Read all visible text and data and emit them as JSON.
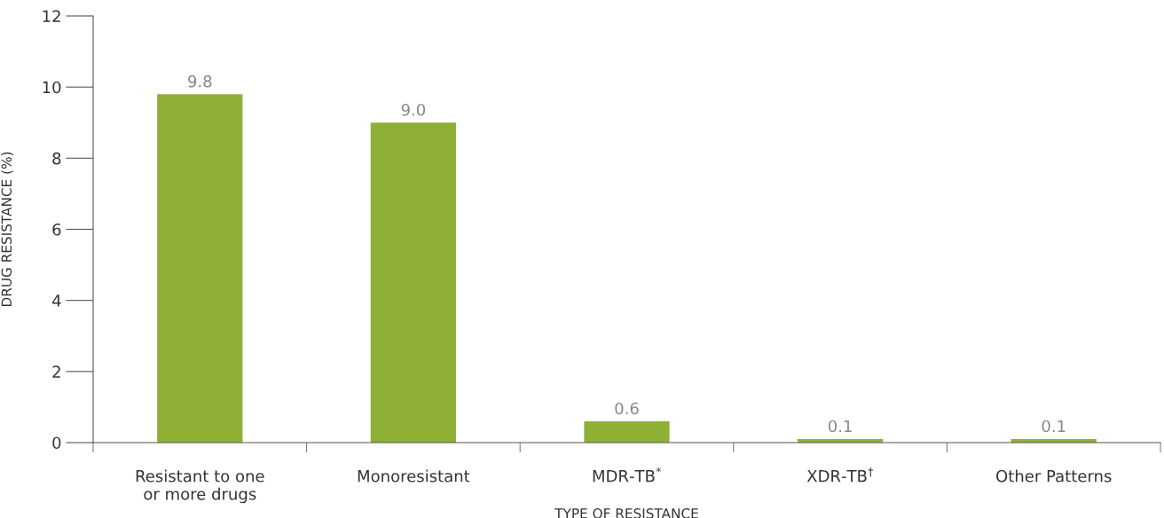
{
  "chart_data": {
    "type": "bar",
    "xlabel": "TYPE OF RESISTANCE",
    "ylabel": "DRUG RESISTANCE (%)",
    "categories": [
      "Resistant to one\nor more drugs",
      "Monoresistant",
      "MDR-TB$^{*}$",
      "XDR-TB$^{†}$",
      "Other Patterns"
    ],
    "values": [
      9.8,
      9.0,
      0.6,
      0.1,
      0.1
    ],
    "value_labels": [
      "9.8",
      "9.0",
      "0.6",
      "0.1",
      "0.1"
    ],
    "color": "#8db035",
    "ylim": [
      0,
      12
    ],
    "yticks": [
      0,
      2,
      4,
      6,
      8,
      10,
      12
    ],
    "grid": false,
    "legend": false
  }
}
